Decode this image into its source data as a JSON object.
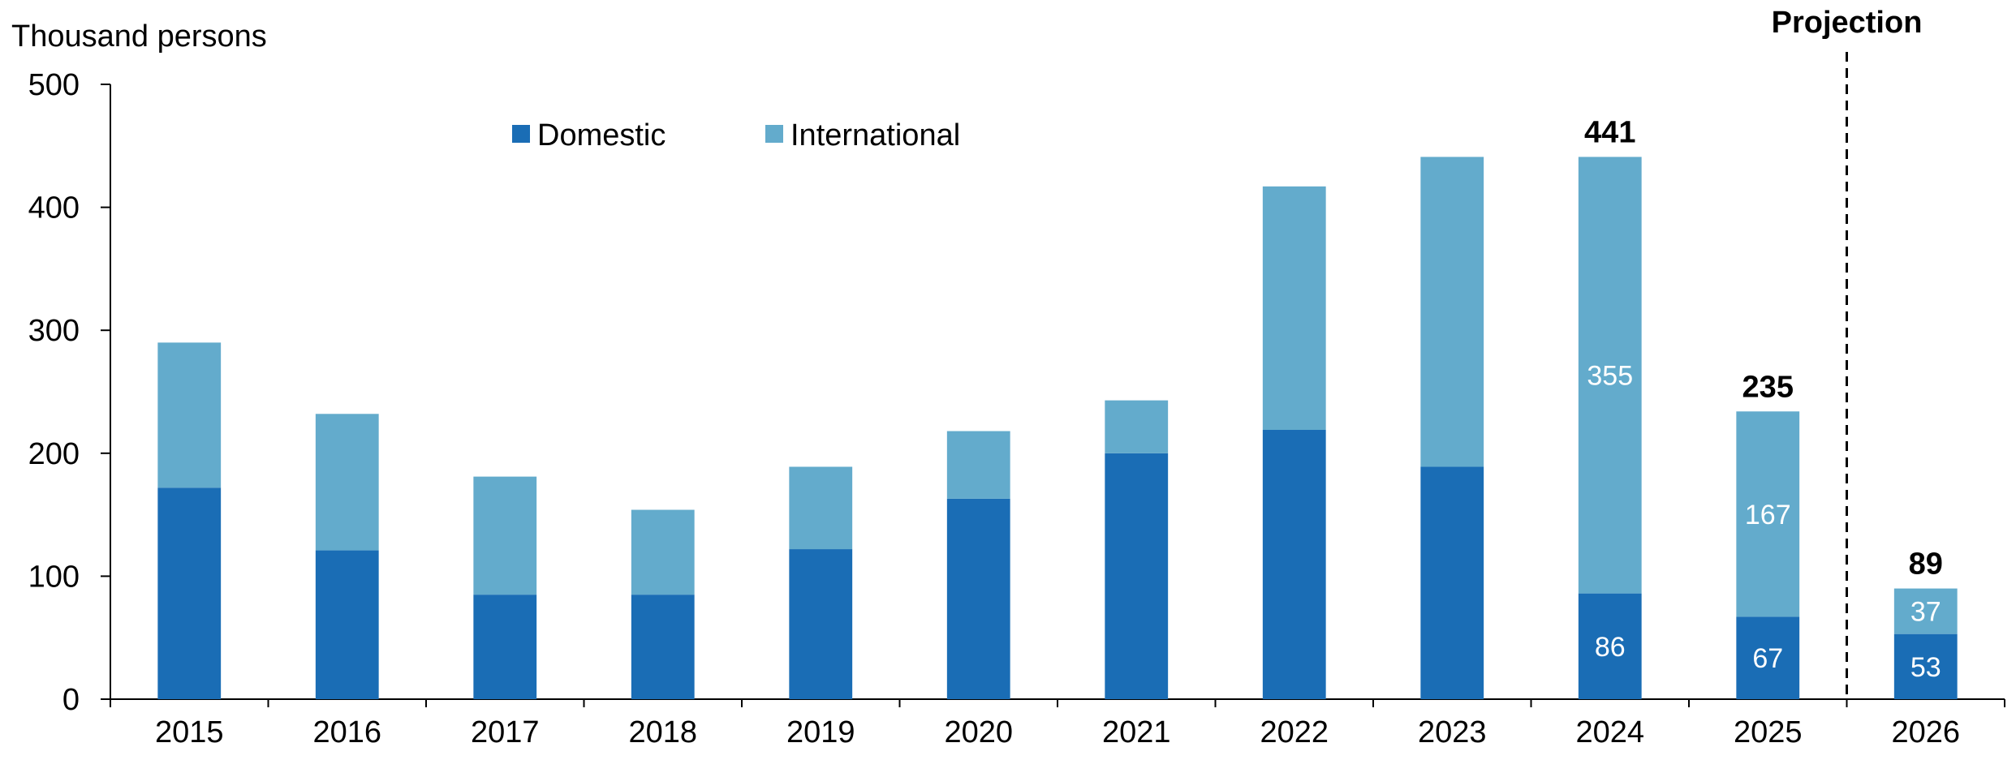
{
  "chart_data": {
    "type": "bar",
    "stacked": true,
    "ylabel": "Thousand persons",
    "ylim": [
      0,
      500
    ],
    "yticks": [
      0,
      100,
      200,
      300,
      400,
      500
    ],
    "categories": [
      "2015",
      "2016",
      "2017",
      "2018",
      "2019",
      "2020",
      "2021",
      "2022",
      "2023",
      "2024",
      "2025",
      "2026"
    ],
    "series": [
      {
        "name": "Domestic",
        "color": "#1a6db5",
        "values": [
          172,
          121,
          85,
          85,
          122,
          163,
          200,
          219,
          189,
          86,
          67,
          53
        ],
        "labels": [
          "",
          "",
          "",
          "",
          "",
          "",
          "",
          "",
          "",
          "86",
          "67",
          "53"
        ]
      },
      {
        "name": "International",
        "color": "#63abcc",
        "values": [
          118,
          111,
          96,
          69,
          67,
          55,
          43,
          198,
          252,
          355,
          167,
          37
        ],
        "labels": [
          "",
          "",
          "",
          "",
          "",
          "",
          "",
          "",
          "",
          "355",
          "167",
          "37"
        ]
      }
    ],
    "totals_labels": [
      "",
      "",
      "",
      "",
      "",
      "",
      "",
      "",
      "",
      "441",
      "235",
      "89"
    ],
    "projection": {
      "label": "Projection",
      "from_category": "2026"
    },
    "legend": {
      "placement": "top-left",
      "orientation": "horizontal"
    },
    "grid": false
  }
}
